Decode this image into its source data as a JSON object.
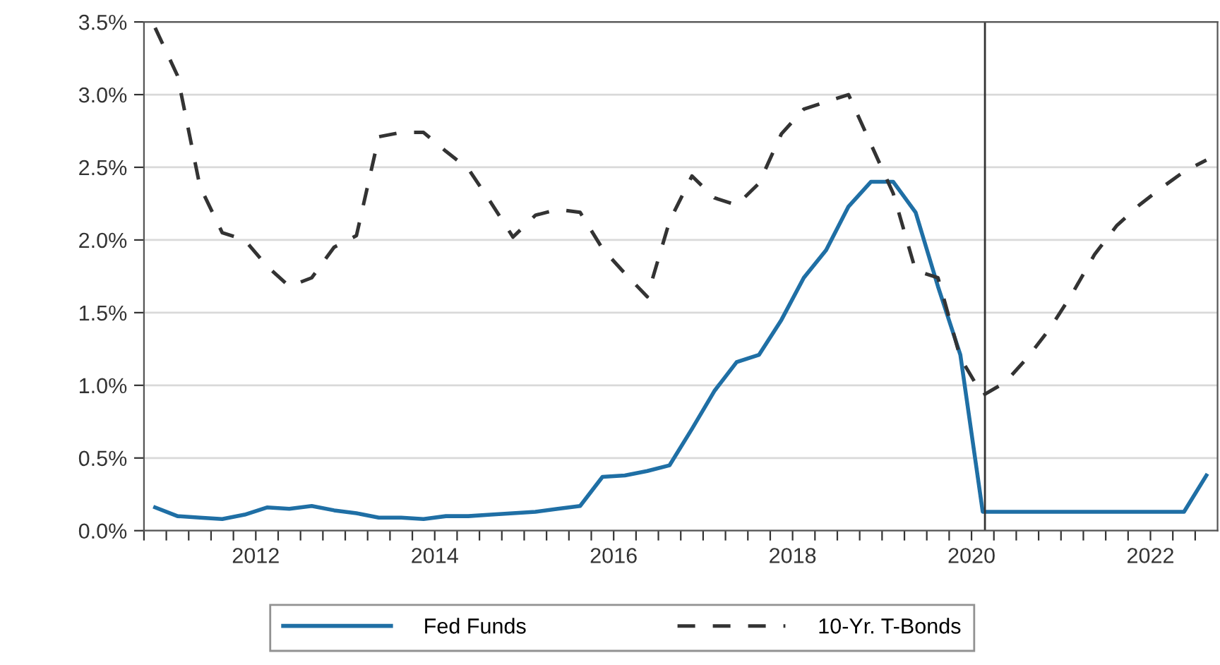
{
  "chart_data": {
    "type": "line",
    "x": [
      2010.875,
      2011.125,
      2011.375,
      2011.625,
      2011.875,
      2012.125,
      2012.375,
      2012.625,
      2012.875,
      2013.125,
      2013.375,
      2013.625,
      2013.875,
      2014.125,
      2014.375,
      2014.625,
      2014.875,
      2015.125,
      2015.375,
      2015.625,
      2015.875,
      2016.125,
      2016.375,
      2016.625,
      2016.875,
      2017.125,
      2017.375,
      2017.625,
      2017.875,
      2018.125,
      2018.375,
      2018.625,
      2018.875,
      2019.125,
      2019.375,
      2019.625,
      2019.875,
      2020.125,
      2020.375,
      2020.625,
      2020.875,
      2021.125,
      2021.375,
      2021.625,
      2021.875,
      2022.125,
      2022.375,
      2022.625
    ],
    "series": [
      {
        "name": "Fed Funds",
        "color": "#1f6fa5",
        "line_style": "solid",
        "values": [
          0.16,
          0.1,
          0.09,
          0.08,
          0.11,
          0.16,
          0.15,
          0.17,
          0.14,
          0.12,
          0.09,
          0.09,
          0.08,
          0.1,
          0.1,
          0.11,
          0.12,
          0.13,
          0.15,
          0.17,
          0.37,
          0.38,
          0.41,
          0.45,
          0.7,
          0.96,
          1.16,
          1.21,
          1.45,
          1.74,
          1.93,
          2.23,
          2.4,
          2.4,
          2.19,
          1.68,
          1.21,
          0.13,
          0.13,
          0.13,
          0.13,
          0.13,
          0.13,
          0.13,
          0.13,
          0.13,
          0.13,
          0.38
        ]
      },
      {
        "name": "10-Yr. T-Bonds",
        "color": "#333333",
        "line_style": "dashed",
        "values": [
          3.46,
          3.13,
          2.37,
          2.05,
          2.0,
          1.82,
          1.68,
          1.74,
          1.95,
          2.03,
          2.71,
          2.74,
          2.74,
          2.61,
          2.49,
          2.26,
          2.02,
          2.17,
          2.21,
          2.19,
          1.94,
          1.77,
          1.61,
          2.13,
          2.44,
          2.29,
          2.24,
          2.39,
          2.73,
          2.9,
          2.95,
          3.0,
          2.66,
          2.32,
          1.79,
          1.74,
          1.19,
          0.93,
          1.02,
          1.19,
          1.39,
          1.63,
          1.9,
          2.1,
          2.24,
          2.36,
          2.47,
          2.55
        ]
      }
    ],
    "xlim": [
      2010.75,
      2022.75
    ],
    "xticks": [
      {
        "value": 2010.75,
        "label": null
      },
      {
        "value": 2011,
        "label": null
      },
      {
        "value": 2011.25,
        "label": null
      },
      {
        "value": 2011.5,
        "label": null
      },
      {
        "value": 2011.75,
        "label": null
      },
      {
        "value": 2012,
        "label": "2012"
      },
      {
        "value": 2012.25,
        "label": null
      },
      {
        "value": 2012.5,
        "label": null
      },
      {
        "value": 2012.75,
        "label": null
      },
      {
        "value": 2013,
        "label": null
      },
      {
        "value": 2013.25,
        "label": null
      },
      {
        "value": 2013.5,
        "label": null
      },
      {
        "value": 2013.75,
        "label": null
      },
      {
        "value": 2014,
        "label": "2014"
      },
      {
        "value": 2014.25,
        "label": null
      },
      {
        "value": 2014.5,
        "label": null
      },
      {
        "value": 2014.75,
        "label": null
      },
      {
        "value": 2015,
        "label": null
      },
      {
        "value": 2015.25,
        "label": null
      },
      {
        "value": 2015.5,
        "label": null
      },
      {
        "value": 2015.75,
        "label": null
      },
      {
        "value": 2016,
        "label": "2016"
      },
      {
        "value": 2016.25,
        "label": null
      },
      {
        "value": 2016.5,
        "label": null
      },
      {
        "value": 2016.75,
        "label": null
      },
      {
        "value": 2017,
        "label": null
      },
      {
        "value": 2017.25,
        "label": null
      },
      {
        "value": 2017.5,
        "label": null
      },
      {
        "value": 2017.75,
        "label": null
      },
      {
        "value": 2018,
        "label": "2018"
      },
      {
        "value": 2018.25,
        "label": null
      },
      {
        "value": 2018.5,
        "label": null
      },
      {
        "value": 2018.75,
        "label": null
      },
      {
        "value": 2019,
        "label": null
      },
      {
        "value": 2019.25,
        "label": null
      },
      {
        "value": 2019.5,
        "label": null
      },
      {
        "value": 2019.75,
        "label": null
      },
      {
        "value": 2020,
        "label": "2020"
      },
      {
        "value": 2020.25,
        "label": null
      },
      {
        "value": 2020.5,
        "label": null
      },
      {
        "value": 2020.75,
        "label": null
      },
      {
        "value": 2021,
        "label": null
      },
      {
        "value": 2021.25,
        "label": null
      },
      {
        "value": 2021.5,
        "label": null
      },
      {
        "value": 2021.75,
        "label": null
      },
      {
        "value": 2022,
        "label": "2022"
      },
      {
        "value": 2022.25,
        "label": null
      },
      {
        "value": 2022.5,
        "label": null
      }
    ],
    "ylim": [
      0,
      3.5
    ],
    "yticks": [
      {
        "value": 0,
        "label": "0.0%"
      },
      {
        "value": 0.5,
        "label": "0.5%"
      },
      {
        "value": 1,
        "label": "1.0%"
      },
      {
        "value": 1.5,
        "label": "1.5%"
      },
      {
        "value": 2,
        "label": "2.0%"
      },
      {
        "value": 2.5,
        "label": "2.5%"
      },
      {
        "value": 3,
        "label": "3.0%"
      },
      {
        "value": 3.5,
        "label": "3.5%"
      }
    ],
    "ref_lines": [
      {
        "axis": "x",
        "value": 2020.15,
        "label": null,
        "color": "#333333",
        "line_style": "solid"
      }
    ],
    "grid": "y",
    "legend": "bottom",
    "marker": "none"
  }
}
